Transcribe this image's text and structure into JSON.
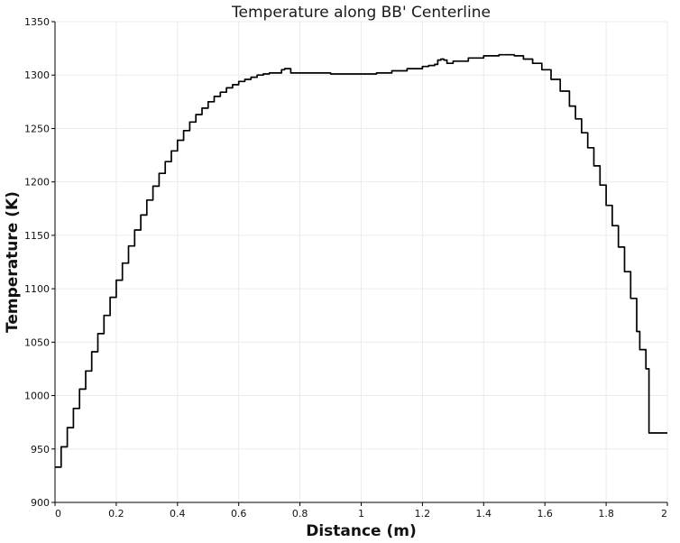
{
  "chart_data": {
    "type": "line",
    "title": "Temperature along BB' Centerline",
    "xlabel": "Distance (m)",
    "ylabel": "Temperature (K)",
    "xlim": [
      0,
      2
    ],
    "ylim": [
      900,
      1350
    ],
    "grid": true,
    "x_ticks": [
      0,
      0.2,
      0.4,
      0.6,
      0.8,
      1,
      1.2,
      1.4,
      1.6,
      1.8,
      2
    ],
    "x_tick_labels": [
      "0",
      "0.2",
      "0.4",
      "0.6",
      "0.8",
      "1",
      "1.2",
      "1.4",
      "1.6",
      "1.8",
      "2"
    ],
    "y_ticks": [
      900,
      950,
      1000,
      1050,
      1100,
      1150,
      1200,
      1250,
      1300,
      1350
    ],
    "y_tick_labels": [
      "900",
      "950",
      "1000",
      "1050",
      "1100",
      "1150",
      "1200",
      "1250",
      "1300",
      "1350"
    ],
    "line_color": "#000000",
    "series": [
      {
        "x": [
          0.0,
          0.02,
          0.04,
          0.06,
          0.08,
          0.1,
          0.12,
          0.14,
          0.16,
          0.18,
          0.2,
          0.22,
          0.24,
          0.26,
          0.28,
          0.3,
          0.32,
          0.34,
          0.36,
          0.38,
          0.4,
          0.42,
          0.44,
          0.46,
          0.48,
          0.5,
          0.52,
          0.54,
          0.56,
          0.58,
          0.6,
          0.62,
          0.64,
          0.66,
          0.68,
          0.7,
          0.72,
          0.74,
          0.75,
          0.76,
          0.77,
          0.78,
          0.8,
          0.85,
          0.9,
          0.95,
          1.0,
          1.05,
          1.1,
          1.15,
          1.2,
          1.22,
          1.24,
          1.25,
          1.26,
          1.27,
          1.28,
          1.3,
          1.35,
          1.4,
          1.45,
          1.5,
          1.53,
          1.56,
          1.59,
          1.62,
          1.65,
          1.68,
          1.7,
          1.72,
          1.74,
          1.76,
          1.78,
          1.8,
          1.82,
          1.84,
          1.86,
          1.88,
          1.9,
          1.91,
          1.92,
          1.93,
          1.94,
          1.95,
          1.96,
          1.97,
          1.98,
          2.0
        ],
        "y": [
          933,
          952,
          970,
          988,
          1006,
          1023,
          1041,
          1058,
          1075,
          1092,
          1108,
          1124,
          1140,
          1155,
          1169,
          1183,
          1196,
          1208,
          1219,
          1229,
          1239,
          1248,
          1256,
          1263,
          1269,
          1275,
          1280,
          1284,
          1288,
          1291,
          1294,
          1296,
          1298,
          1300,
          1301,
          1302,
          1302,
          1305,
          1306,
          1306,
          1302,
          1302,
          1302,
          1302,
          1301,
          1301,
          1301,
          1302,
          1304,
          1306,
          1308,
          1309,
          1310,
          1314,
          1315,
          1314,
          1311,
          1313,
          1316,
          1318,
          1319,
          1318,
          1315,
          1311,
          1305,
          1296,
          1285,
          1271,
          1259,
          1246,
          1232,
          1215,
          1197,
          1178,
          1159,
          1139,
          1116,
          1091,
          1060,
          1043,
          1043,
          1025,
          965,
          965,
          965,
          965,
          965,
          965
        ]
      }
    ]
  }
}
